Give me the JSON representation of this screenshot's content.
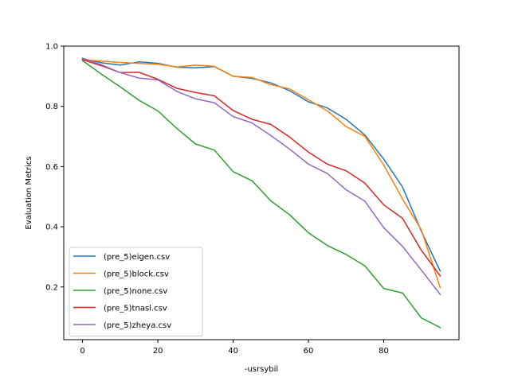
{
  "chart_data": {
    "type": "line",
    "title": "",
    "xlabel": "-usrsybil",
    "ylabel": "Evaluation Metrics",
    "xlim": [
      -5,
      100
    ],
    "ylim": [
      0.025,
      1.0
    ],
    "xticks": [
      0,
      20,
      40,
      60,
      80
    ],
    "yticks": [
      0.2,
      0.4,
      0.6,
      0.8,
      1.0
    ],
    "xtick_labels": [
      "0",
      "20",
      "40",
      "60",
      "80"
    ],
    "ytick_labels": [
      "0.2",
      "0.4",
      "0.6",
      "0.8",
      "1.0"
    ],
    "grid": false,
    "legend_position": "lower-left",
    "x": [
      0,
      5,
      10,
      15,
      20,
      25,
      30,
      35,
      40,
      45,
      50,
      55,
      60,
      65,
      70,
      75,
      80,
      85,
      90,
      95
    ],
    "series": [
      {
        "name": "(pre_5)eigen.csv",
        "color": "#1f77b4",
        "values": [
          0.958,
          0.945,
          0.937,
          0.948,
          0.943,
          0.93,
          0.928,
          0.932,
          0.9,
          0.893,
          0.878,
          0.852,
          0.815,
          0.795,
          0.757,
          0.705,
          0.625,
          0.532,
          0.385,
          0.253
        ]
      },
      {
        "name": "(pre_5)block.csv",
        "color": "#ff7f0e",
        "values": [
          0.955,
          0.95,
          0.946,
          0.943,
          0.94,
          0.931,
          0.937,
          0.933,
          0.9,
          0.896,
          0.872,
          0.858,
          0.822,
          0.785,
          0.733,
          0.7,
          0.605,
          0.492,
          0.39,
          0.198
        ]
      },
      {
        "name": "(pre_5)none.csv",
        "color": "#2ca02c",
        "values": [
          0.952,
          0.907,
          0.865,
          0.82,
          0.785,
          0.727,
          0.675,
          0.655,
          0.583,
          0.553,
          0.486,
          0.44,
          0.38,
          0.338,
          0.308,
          0.27,
          0.195,
          0.18,
          0.097,
          0.065
        ]
      },
      {
        "name": "(pre_5)tnasl.csv",
        "color": "#d62728",
        "values": [
          0.955,
          0.935,
          0.912,
          0.913,
          0.89,
          0.86,
          0.846,
          0.835,
          0.786,
          0.757,
          0.74,
          0.698,
          0.648,
          0.608,
          0.586,
          0.545,
          0.473,
          0.428,
          0.322,
          0.237
        ]
      },
      {
        "name": "(pre_5)zheya.csv",
        "color": "#9467bd",
        "values": [
          0.96,
          0.938,
          0.912,
          0.894,
          0.888,
          0.85,
          0.825,
          0.812,
          0.766,
          0.745,
          0.703,
          0.658,
          0.608,
          0.577,
          0.523,
          0.485,
          0.397,
          0.335,
          0.256,
          0.175
        ]
      }
    ]
  }
}
